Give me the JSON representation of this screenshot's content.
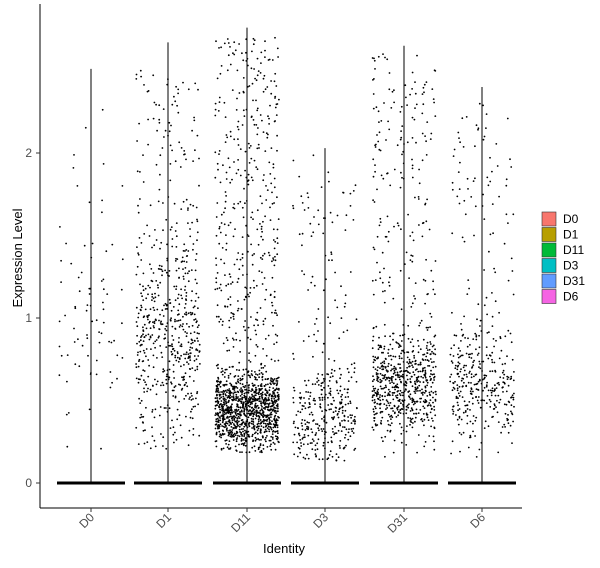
{
  "chart_data": {
    "type": "scatter",
    "subtype": "violin-jitter",
    "xlabel": "Identity",
    "ylabel": "Expression Level",
    "categories": [
      "D0",
      "D1",
      "D11",
      "D3",
      "D31",
      "D6"
    ],
    "ylim": [
      -0.15,
      2.8
    ],
    "yticks": [
      0,
      1,
      2
    ],
    "grid": false,
    "legend_placement": "right",
    "series": [
      {
        "name": "D0",
        "color": "#F8766D",
        "max": 2.51,
        "n_nonzero": 80
      },
      {
        "name": "D1",
        "color": "#B79F00",
        "max": 2.67,
        "n_nonzero": 600
      },
      {
        "name": "D11",
        "color": "#00BA38",
        "max": 2.76,
        "n_nonzero": 1500
      },
      {
        "name": "D3",
        "color": "#00BFC4",
        "max": 2.03,
        "n_nonzero": 380
      },
      {
        "name": "D31",
        "color": "#619CFF",
        "max": 2.65,
        "n_nonzero": 800
      },
      {
        "name": "D6",
        "color": "#F564E3",
        "max": 2.4,
        "n_nonzero": 400
      }
    ],
    "point_color": "#000000"
  }
}
